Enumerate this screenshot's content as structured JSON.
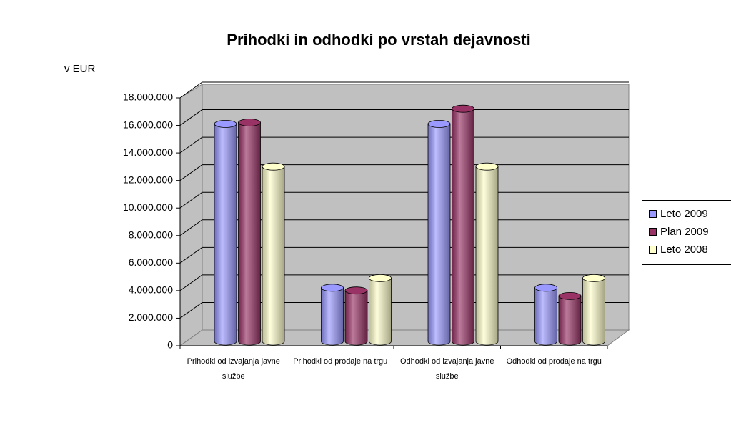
{
  "chart_data": {
    "type": "bar3d",
    "title": "Prihodki in odhodki po vrstah dejavnosti",
    "y_label": "v EUR",
    "categories": [
      "Prihodki od izvajanja javne službe",
      "Prihodki od prodaje na trgu",
      "Odhodki od izvajanja javne službe",
      "Odhodki od prodaje na trgu"
    ],
    "series": [
      {
        "name": "Leto 2009",
        "color": "#9999ff",
        "values": [
          15800000,
          3900000,
          15800000,
          3900000
        ]
      },
      {
        "name": "Plan 2009",
        "color": "#993366",
        "values": [
          15900000,
          3700000,
          16900000,
          3300000
        ]
      },
      {
        "name": "Leto 2008",
        "color": "#ffffcc",
        "values": [
          12700000,
          4600000,
          12700000,
          4600000
        ]
      }
    ],
    "ylim": [
      0,
      18000000
    ],
    "yticks": [
      0,
      {
        "value": 2000000,
        "label": "2.000.000"
      },
      {
        "value": 4000000,
        "label": "4.000.000"
      },
      {
        "value": 6000000,
        "label": "6.000.000"
      },
      {
        "value": 8000000,
        "label": "8.000.000"
      },
      {
        "value": 10000000,
        "label": "10.000.000"
      },
      {
        "value": 12000000,
        "label": "12.000.000"
      },
      {
        "value": 14000000,
        "label": "14.000.000"
      },
      {
        "value": 16000000,
        "label": "16.000.000"
      },
      {
        "value": 18000000,
        "label": "18.000.000"
      }
    ],
    "grid": true,
    "legend": "right"
  }
}
